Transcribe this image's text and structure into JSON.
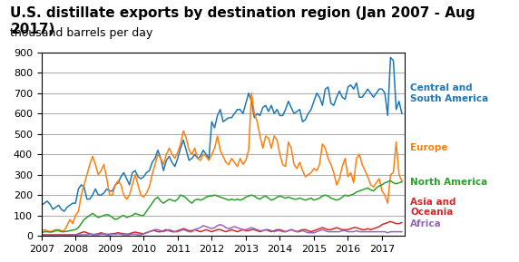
{
  "chart_data": {
    "type": "line",
    "title": "U.S. distillate exports by destination region (Jan 2007 - Aug 2017)",
    "subtitle": "thousand barrels per day",
    "xlim": [
      2007.0,
      2017.67
    ],
    "xticks": [
      2007,
      2008,
      2009,
      2010,
      2011,
      2012,
      2013,
      2014,
      2015,
      2016,
      2017
    ],
    "ylim": [
      0,
      900
    ],
    "yticks": [
      0,
      100,
      200,
      300,
      400,
      500,
      600,
      700,
      800,
      900
    ],
    "grid": "y",
    "x": [
      2007.0,
      2007.0833,
      2007.1667,
      2007.25,
      2007.3333,
      2007.4167,
      2007.5,
      2007.5833,
      2007.6667,
      2007.75,
      2007.8333,
      2007.9167,
      2008.0,
      2008.0833,
      2008.1667,
      2008.25,
      2008.3333,
      2008.4167,
      2008.5,
      2008.5833,
      2008.6667,
      2008.75,
      2008.8333,
      2008.9167,
      2009.0,
      2009.0833,
      2009.1667,
      2009.25,
      2009.3333,
      2009.4167,
      2009.5,
      2009.5833,
      2009.6667,
      2009.75,
      2009.8333,
      2009.9167,
      2010.0,
      2010.0833,
      2010.1667,
      2010.25,
      2010.3333,
      2010.4167,
      2010.5,
      2010.5833,
      2010.6667,
      2010.75,
      2010.8333,
      2010.9167,
      2011.0,
      2011.0833,
      2011.1667,
      2011.25,
      2011.3333,
      2011.4167,
      2011.5,
      2011.5833,
      2011.6667,
      2011.75,
      2011.8333,
      2011.9167,
      2012.0,
      2012.0833,
      2012.1667,
      2012.25,
      2012.3333,
      2012.4167,
      2012.5,
      2012.5833,
      2012.6667,
      2012.75,
      2012.8333,
      2012.9167,
      2013.0,
      2013.0833,
      2013.1667,
      2013.25,
      2013.3333,
      2013.4167,
      2013.5,
      2013.5833,
      2013.6667,
      2013.75,
      2013.8333,
      2013.9167,
      2014.0,
      2014.0833,
      2014.1667,
      2014.25,
      2014.3333,
      2014.4167,
      2014.5,
      2014.5833,
      2014.6667,
      2014.75,
      2014.8333,
      2014.9167,
      2015.0,
      2015.0833,
      2015.1667,
      2015.25,
      2015.3333,
      2015.4167,
      2015.5,
      2015.5833,
      2015.6667,
      2015.75,
      2015.8333,
      2015.9167,
      2016.0,
      2016.0833,
      2016.1667,
      2016.25,
      2016.3333,
      2016.4167,
      2016.5,
      2016.5833,
      2016.6667,
      2016.75,
      2016.8333,
      2016.9167,
      2017.0,
      2017.0833,
      2017.1667,
      2017.25,
      2017.3333,
      2017.4167,
      2017.5,
      2017.5833
    ],
    "series": [
      {
        "name": "Central and\nSouth America",
        "values": [
          150,
          160,
          170,
          155,
          130,
          140,
          150,
          130,
          120,
          140,
          150,
          160,
          160,
          230,
          250,
          240,
          180,
          180,
          200,
          230,
          200,
          200,
          210,
          230,
          220,
          220,
          250,
          260,
          290,
          310,
          280,
          250,
          310,
          320,
          290,
          280,
          290,
          310,
          320,
          360,
          380,
          420,
          380,
          320,
          370,
          390,
          360,
          340,
          380,
          430,
          470,
          420,
          370,
          380,
          400,
          380,
          390,
          420,
          400,
          380,
          560,
          530,
          590,
          620,
          560,
          570,
          580,
          580,
          600,
          620,
          620,
          600,
          650,
          700,
          660,
          580,
          600,
          590,
          630,
          640,
          610,
          640,
          600,
          620,
          590,
          590,
          620,
          660,
          630,
          600,
          610,
          620,
          560,
          570,
          600,
          620,
          660,
          700,
          680,
          640,
          720,
          730,
          650,
          640,
          680,
          710,
          680,
          670,
          730,
          740,
          720,
          750,
          680,
          680,
          700,
          720,
          700,
          680,
          700,
          720,
          720,
          700,
          590,
          875,
          860,
          620,
          660,
          600
        ]
      },
      {
        "name": "Europe",
        "values": [
          20,
          30,
          25,
          20,
          25,
          30,
          30,
          25,
          25,
          50,
          80,
          60,
          100,
          120,
          200,
          250,
          300,
          350,
          390,
          350,
          300,
          320,
          350,
          280,
          200,
          200,
          250,
          270,
          250,
          200,
          180,
          200,
          250,
          300,
          250,
          200,
          190,
          210,
          240,
          300,
          350,
          400,
          380,
          350,
          400,
          430,
          400,
          380,
          410,
          450,
          515,
          480,
          420,
          400,
          430,
          380,
          370,
          400,
          390,
          370,
          400,
          430,
          490,
          420,
          390,
          360,
          350,
          380,
          360,
          340,
          380,
          350,
          370,
          420,
          700,
          600,
          560,
          490,
          430,
          490,
          480,
          430,
          490,
          470,
          400,
          350,
          340,
          460,
          430,
          350,
          330,
          360,
          320,
          290,
          300,
          310,
          330,
          320,
          350,
          450,
          430,
          380,
          350,
          310,
          250,
          280,
          340,
          380,
          290,
          310,
          260,
          380,
          400,
          350,
          320,
          290,
          250,
          240,
          260,
          280,
          220,
          200,
          160,
          300,
          310,
          460,
          300,
          270
        ]
      },
      {
        "name": "North America",
        "values": [
          15,
          20,
          20,
          18,
          20,
          25,
          25,
          20,
          20,
          22,
          25,
          28,
          30,
          40,
          60,
          80,
          90,
          100,
          110,
          100,
          90,
          95,
          100,
          105,
          100,
          90,
          80,
          85,
          95,
          100,
          90,
          95,
          100,
          110,
          105,
          100,
          100,
          120,
          140,
          160,
          180,
          190,
          170,
          160,
          170,
          180,
          175,
          170,
          180,
          200,
          195,
          185,
          170,
          160,
          175,
          180,
          175,
          180,
          190,
          195,
          195,
          200,
          195,
          190,
          185,
          180,
          175,
          180,
          175,
          180,
          175,
          180,
          190,
          195,
          200,
          195,
          185,
          180,
          190,
          195,
          185,
          175,
          180,
          190,
          195,
          190,
          185,
          190,
          185,
          180,
          180,
          185,
          180,
          175,
          180,
          185,
          175,
          180,
          185,
          195,
          200,
          195,
          185,
          180,
          175,
          180,
          190,
          200,
          195,
          200,
          205,
          215,
          220,
          225,
          230,
          235,
          225,
          220,
          235,
          245,
          250,
          260,
          265,
          270,
          260,
          255,
          260,
          265
        ]
      },
      {
        "name": "Asia and\nOceania",
        "values": [
          5,
          5,
          5,
          5,
          5,
          5,
          5,
          5,
          5,
          5,
          5,
          5,
          5,
          10,
          15,
          20,
          15,
          10,
          5,
          8,
          10,
          15,
          10,
          8,
          8,
          10,
          12,
          15,
          12,
          10,
          8,
          10,
          15,
          18,
          15,
          12,
          10,
          15,
          20,
          25,
          25,
          20,
          20,
          25,
          30,
          25,
          20,
          20,
          25,
          30,
          35,
          30,
          25,
          25,
          30,
          25,
          20,
          25,
          30,
          25,
          20,
          25,
          30,
          30,
          25,
          20,
          25,
          30,
          25,
          20,
          25,
          30,
          25,
          25,
          30,
          30,
          25,
          20,
          25,
          30,
          25,
          20,
          25,
          30,
          30,
          25,
          20,
          25,
          30,
          25,
          20,
          25,
          30,
          30,
          25,
          20,
          25,
          30,
          35,
          40,
          35,
          30,
          30,
          35,
          40,
          35,
          30,
          30,
          30,
          35,
          40,
          40,
          35,
          30,
          30,
          35,
          30,
          35,
          40,
          45,
          55,
          60,
          65,
          70,
          65,
          60,
          60,
          65
        ]
      },
      {
        "name": "Africa",
        "values": [
          2,
          3,
          3,
          2,
          3,
          3,
          3,
          3,
          3,
          3,
          3,
          3,
          3,
          5,
          5,
          5,
          5,
          8,
          8,
          5,
          5,
          8,
          8,
          5,
          5,
          8,
          8,
          10,
          8,
          5,
          5,
          5,
          8,
          8,
          5,
          5,
          10,
          15,
          20,
          25,
          30,
          30,
          25,
          20,
          25,
          30,
          25,
          20,
          20,
          25,
          30,
          25,
          20,
          20,
          30,
          35,
          40,
          50,
          45,
          40,
          35,
          40,
          50,
          55,
          50,
          40,
          35,
          40,
          45,
          40,
          35,
          30,
          30,
          35,
          40,
          35,
          30,
          25,
          25,
          30,
          30,
          25,
          20,
          25,
          25,
          20,
          20,
          25,
          30,
          25,
          20,
          20,
          25,
          20,
          15,
          15,
          15,
          20,
          25,
          30,
          25,
          20,
          20,
          20,
          20,
          20,
          25,
          25,
          20,
          20,
          20,
          25,
          20,
          20,
          20,
          20,
          20,
          20,
          20,
          20,
          20,
          20,
          15,
          20,
          20,
          20,
          20,
          20
        ]
      }
    ],
    "annotations": [
      {
        "text": "Central and\nSouth America",
        "x": 2017.68,
        "y": 700
      },
      {
        "text": "Europe",
        "x": 2017.68,
        "y": 430
      },
      {
        "text": "North America",
        "x": 2017.68,
        "y": 265
      },
      {
        "text": "Asia and\nOceania",
        "x": 2017.68,
        "y": 140
      },
      {
        "text": "Africa",
        "x": 2017.68,
        "y": 60
      }
    ]
  }
}
